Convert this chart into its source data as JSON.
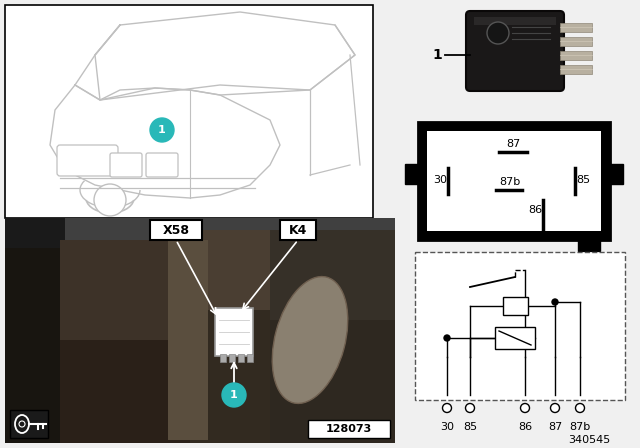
{
  "bg_color": "#f0f0f0",
  "white": "#ffffff",
  "black": "#000000",
  "teal": "#29b8b8",
  "dark_gray": "#333333",
  "car_outline_color": "#c0c0c0",
  "part_number_bottom_right": "340545",
  "photo_label": "128073",
  "pin_box_pins": {
    "87": {
      "label": "87",
      "pos": "top_center"
    },
    "87b": {
      "label": "87b",
      "pos": "mid_center"
    },
    "85": {
      "label": "85",
      "pos": "mid_right"
    },
    "86": {
      "label": "86",
      "pos": "bot_center"
    },
    "30": {
      "label": "30",
      "pos": "mid_left"
    }
  },
  "schematic_pins_order": [
    "30",
    "85",
    "86",
    "87",
    "87b"
  ]
}
